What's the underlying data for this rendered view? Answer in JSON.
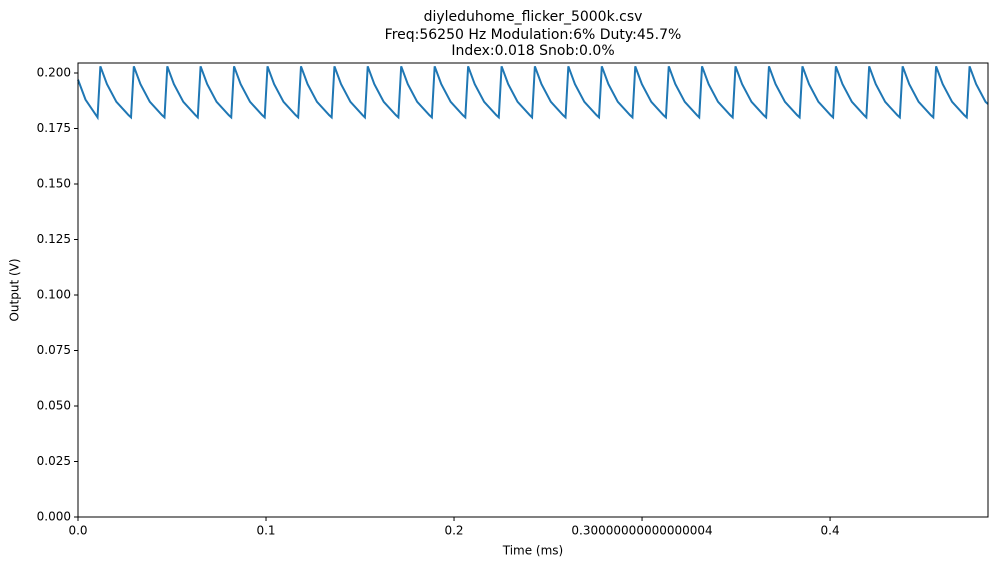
{
  "chart_data": {
    "type": "line",
    "title": "diyleduhome_flicker_5000k.csv",
    "subtitle": [
      "Freq:56250 Hz  Modulation:6%  Duty:45.7%",
      "Index:0.018  Snob:0.0%"
    ],
    "x_label": "Time (ms)",
    "y_label": "Output (V)",
    "xlim": [
      0,
      0.484
    ],
    "ylim": [
      0,
      0.2045
    ],
    "xticks": [
      {
        "value": 0,
        "label": "0.0"
      },
      0.1,
      0.2,
      {
        "value": 0.30000000000000004,
        "label": "0.30000000000000004"
      },
      0.4
    ],
    "yticks": [
      {
        "value": 0,
        "label": "0.000"
      },
      {
        "value": 0.025,
        "label": "0.025"
      },
      {
        "value": 0.05,
        "label": "0.050"
      },
      {
        "value": 0.075,
        "label": "0.075"
      },
      {
        "value": 0.1,
        "label": "0.100"
      },
      {
        "value": 0.125,
        "label": "0.125"
      },
      {
        "value": 0.15,
        "label": "0.150"
      },
      {
        "value": 0.175,
        "label": "0.175"
      },
      {
        "value": 0.2,
        "label": "0.200"
      }
    ],
    "grid": false,
    "x": [
      0,
      0.004,
      0.0104,
      0.0119,
      0.0154,
      0.0204,
      0.0269,
      0.0282,
      0.0297,
      0.0332,
      0.0382,
      0.0447,
      0.046,
      0.0475,
      0.051,
      0.056,
      0.0625,
      0.0637,
      0.0652,
      0.0687,
      0.0737,
      0.0802,
      0.0815,
      0.083,
      0.0865,
      0.0915,
      0.098,
      0.0993,
      0.1008,
      0.1043,
      0.1093,
      0.1158,
      0.1171,
      0.1186,
      0.1221,
      0.1271,
      0.1336,
      0.1349,
      0.1364,
      0.1399,
      0.1449,
      0.1514,
      0.1526,
      0.1541,
      0.1576,
      0.1626,
      0.1691,
      0.1704,
      0.1719,
      0.1754,
      0.1804,
      0.1869,
      0.1882,
      0.1897,
      0.1932,
      0.1982,
      0.2047,
      0.206,
      0.2075,
      0.211,
      0.216,
      0.2225,
      0.2238,
      0.2253,
      0.2288,
      0.2338,
      0.2403,
      0.2415,
      0.243,
      0.2465,
      0.2515,
      0.258,
      0.2593,
      0.2608,
      0.2643,
      0.2693,
      0.2758,
      0.2771,
      0.2786,
      0.2821,
      0.2871,
      0.2936,
      0.2949,
      0.2964,
      0.2999,
      0.3049,
      0.3114,
      0.3127,
      0.3142,
      0.3177,
      0.3227,
      0.3292,
      0.3304,
      0.3319,
      0.3354,
      0.3404,
      0.3469,
      0.3482,
      0.3497,
      0.3532,
      0.3582,
      0.3647,
      0.366,
      0.3675,
      0.371,
      0.376,
      0.3825,
      0.3838,
      0.3853,
      0.3888,
      0.3938,
      0.4003,
      0.4016,
      0.4031,
      0.4066,
      0.4116,
      0.4181,
      0.4193,
      0.4208,
      0.4243,
      0.4293,
      0.4358,
      0.4371,
      0.4386,
      0.4421,
      0.4471,
      0.4536,
      0.4549,
      0.4564,
      0.4599,
      0.4649,
      0.4714,
      0.4727,
      0.4742,
      0.4777,
      0.4827,
      0.484
    ],
    "series": [
      {
        "color": "#1f77b4",
        "values": [
          0.197,
          0.188,
          0.18,
          0.203,
          0.195,
          0.187,
          0.181,
          0.18,
          0.203,
          0.195,
          0.187,
          0.181,
          0.18,
          0.203,
          0.195,
          0.187,
          0.181,
          0.18,
          0.203,
          0.195,
          0.187,
          0.181,
          0.18,
          0.203,
          0.195,
          0.187,
          0.181,
          0.18,
          0.203,
          0.195,
          0.187,
          0.181,
          0.18,
          0.203,
          0.195,
          0.187,
          0.181,
          0.18,
          0.203,
          0.195,
          0.187,
          0.181,
          0.18,
          0.203,
          0.195,
          0.187,
          0.181,
          0.18,
          0.203,
          0.195,
          0.187,
          0.181,
          0.18,
          0.203,
          0.195,
          0.187,
          0.181,
          0.18,
          0.203,
          0.195,
          0.187,
          0.181,
          0.18,
          0.203,
          0.195,
          0.187,
          0.181,
          0.18,
          0.203,
          0.195,
          0.187,
          0.181,
          0.18,
          0.203,
          0.195,
          0.187,
          0.181,
          0.18,
          0.203,
          0.195,
          0.187,
          0.181,
          0.18,
          0.203,
          0.195,
          0.187,
          0.181,
          0.18,
          0.203,
          0.195,
          0.187,
          0.181,
          0.18,
          0.203,
          0.195,
          0.187,
          0.181,
          0.18,
          0.203,
          0.195,
          0.187,
          0.181,
          0.18,
          0.203,
          0.195,
          0.187,
          0.181,
          0.18,
          0.203,
          0.195,
          0.187,
          0.181,
          0.18,
          0.203,
          0.195,
          0.187,
          0.181,
          0.18,
          0.203,
          0.195,
          0.187,
          0.181,
          0.18,
          0.203,
          0.195,
          0.187,
          0.181,
          0.18,
          0.203,
          0.195,
          0.187,
          0.181,
          0.18,
          0.203,
          0.195,
          0.187,
          0.186
        ]
      }
    ]
  }
}
